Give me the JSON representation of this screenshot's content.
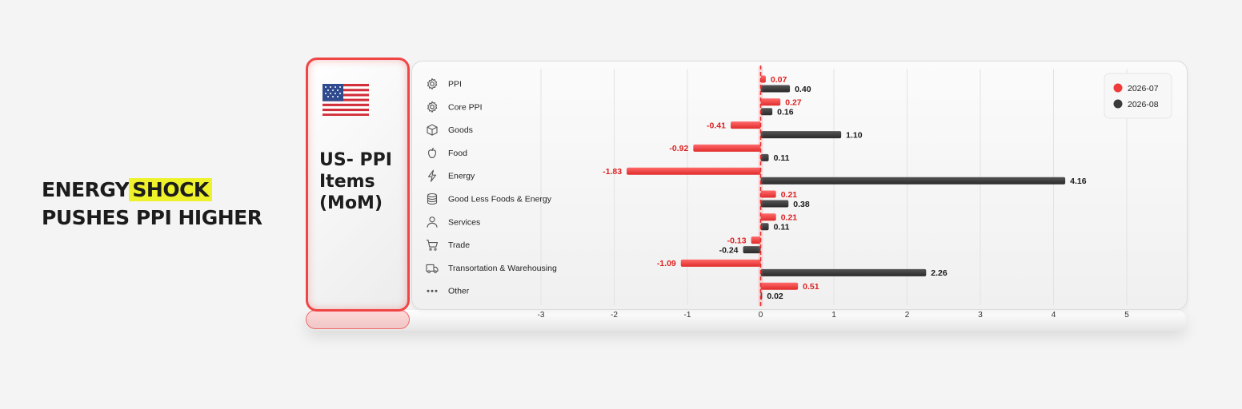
{
  "headline": {
    "line1_part1": "ENERGY",
    "line1_highlight": "SHOCK",
    "line2": "PUSHES PPI HIGHER"
  },
  "card": {
    "title": "US- PPI Items (MoM)",
    "flag_icon": "us-flag-icon"
  },
  "colors": {
    "series1": "#ef3b3b",
    "series2": "#3a3a3a",
    "label1": "#e02020",
    "label2": "#1a1a1a"
  },
  "chart_data": {
    "type": "bar",
    "orientation": "horizontal",
    "categories": [
      "PPI",
      "Core PPI",
      "Goods",
      "Food",
      "Energy",
      "Good Less Foods & Energy",
      "Services",
      "Trade",
      "Transortation & Warehousing",
      "Other"
    ],
    "category_icons": [
      "gear-icon",
      "gear-icon",
      "box-icon",
      "apple-icon",
      "lightning-icon",
      "database-icon",
      "person-icon",
      "cart-icon",
      "truck-icon",
      "dots-icon"
    ],
    "series": [
      {
        "name": "2026-07",
        "values": [
          0.07,
          0.27,
          -0.41,
          -0.92,
          -1.83,
          0.21,
          0.21,
          -0.13,
          -1.09,
          0.51
        ]
      },
      {
        "name": "2026-08",
        "values": [
          0.4,
          0.16,
          1.1,
          0.11,
          4.16,
          0.38,
          0.11,
          -0.24,
          2.26,
          0.02
        ]
      }
    ],
    "value_labels": [
      [
        "0.07",
        "0.27",
        "-0.41",
        "-0.92",
        "-1.83",
        "0.21",
        "0.21",
        "-0.13",
        "-1.09",
        "0.51"
      ],
      [
        "0.40",
        "0.16",
        "1.10",
        "0.11",
        "4.16",
        "0.38",
        "0.11",
        "-0.24",
        "2.26",
        "0.02"
      ]
    ],
    "xticks": [
      "-3",
      "-2",
      "-1",
      "0",
      "1",
      "2",
      "3",
      "4",
      "5"
    ],
    "xlim": [
      -4.2,
      5.5
    ],
    "legend_position": "top-right",
    "grid": true
  }
}
